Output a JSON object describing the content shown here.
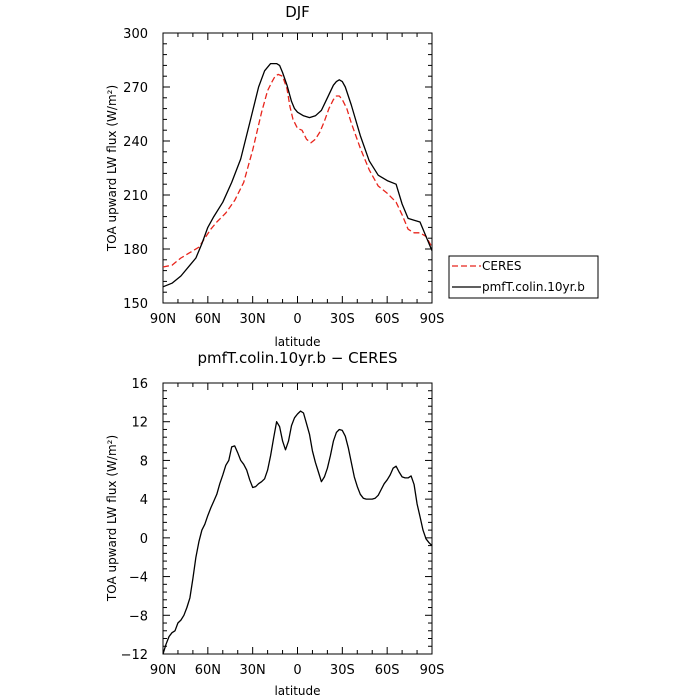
{
  "chart_data": [
    {
      "type": "line",
      "title": "DJF",
      "xlabel": "latitude",
      "ylabel": "TOA upward LW flux (W/m²)",
      "xlim": [
        -90,
        90
      ],
      "ylim": [
        150,
        300
      ],
      "x_ticks": [
        {
          "value": -90,
          "label": "90N"
        },
        {
          "value": -60,
          "label": "60N"
        },
        {
          "value": -30,
          "label": "30N"
        },
        {
          "value": 0,
          "label": "0"
        },
        {
          "value": 30,
          "label": "30S"
        },
        {
          "value": 60,
          "label": "60S"
        },
        {
          "value": 90,
          "label": "90S"
        }
      ],
      "y_ticks": [
        150,
        180,
        210,
        240,
        270,
        300
      ],
      "legend": "outside-right",
      "series": [
        {
          "name": "CERES",
          "color": "#e8251c",
          "dash": "dashed",
          "x": [
            -90,
            -84,
            -78,
            -72,
            -66,
            -62,
            -58,
            -54,
            -48,
            -42,
            -36,
            -30,
            -24,
            -20,
            -17,
            -15,
            -13,
            -10,
            -7,
            -5,
            -3,
            0,
            3,
            6,
            9,
            12,
            15,
            18,
            21,
            24,
            26,
            28,
            30,
            33,
            36,
            42,
            48,
            54,
            60,
            66,
            70,
            74,
            78,
            82,
            86,
            90
          ],
          "values": [
            170,
            171,
            175,
            178,
            181,
            186,
            191,
            195,
            200,
            207,
            217,
            235,
            256,
            268,
            273,
            276,
            277,
            276,
            269,
            259,
            252,
            247,
            246,
            241,
            239,
            241,
            245,
            251,
            258,
            263,
            265,
            265,
            263,
            258,
            250,
            236,
            224,
            215,
            211,
            206,
            199,
            191,
            189,
            189,
            187,
            181
          ]
        },
        {
          "name": "pmfT.colin.10yr.b",
          "color": "#000000",
          "dash": "solid",
          "x": [
            -90,
            -84,
            -78,
            -72,
            -68,
            -64,
            -60,
            -56,
            -50,
            -44,
            -38,
            -32,
            -26,
            -22,
            -18,
            -16,
            -14,
            -12,
            -10,
            -7,
            -4,
            -2,
            0,
            4,
            8,
            12,
            16,
            20,
            24,
            26,
            28,
            30,
            32,
            36,
            42,
            48,
            54,
            60,
            66,
            70,
            74,
            78,
            82,
            86,
            90
          ],
          "values": [
            159,
            161,
            165,
            171,
            175,
            183,
            192,
            198,
            206,
            217,
            230,
            250,
            270,
            279,
            283,
            283,
            283,
            282,
            278,
            271,
            262,
            258,
            256,
            254,
            253,
            254,
            257,
            264,
            271,
            273,
            274,
            273,
            270,
            260,
            243,
            229,
            221,
            218,
            216,
            205,
            197,
            196,
            195,
            187,
            179
          ]
        }
      ]
    },
    {
      "type": "line",
      "title": "pmfT.colin.10yr.b − CERES",
      "xlabel": "latitude",
      "ylabel": "TOA upward LW flux (W/m²)",
      "xlim": [
        -90,
        90
      ],
      "ylim": [
        -12,
        16
      ],
      "x_ticks": [
        {
          "value": -90,
          "label": "90N"
        },
        {
          "value": -60,
          "label": "60N"
        },
        {
          "value": -30,
          "label": "30N"
        },
        {
          "value": 0,
          "label": "0"
        },
        {
          "value": 30,
          "label": "30S"
        },
        {
          "value": 60,
          "label": "60S"
        },
        {
          "value": 90,
          "label": "90S"
        }
      ],
      "y_ticks": [
        -12,
        -8,
        -4,
        0,
        4,
        8,
        12,
        16
      ],
      "series": [
        {
          "color": "#000000",
          "dash": "solid",
          "x": [
            -90,
            -88,
            -86,
            -84,
            -82,
            -80,
            -78,
            -76,
            -74,
            -72,
            -70,
            -68,
            -66,
            -64,
            -62,
            -60,
            -58,
            -56,
            -54,
            -52,
            -50,
            -48,
            -46,
            -44,
            -42,
            -40,
            -38,
            -36,
            -34,
            -32,
            -30,
            -28,
            -26,
            -24,
            -22,
            -20,
            -18,
            -16,
            -14,
            -12,
            -10,
            -8,
            -6,
            -4,
            -2,
            0,
            2,
            4,
            6,
            8,
            10,
            12,
            14,
            16,
            18,
            20,
            22,
            24,
            26,
            28,
            30,
            32,
            34,
            36,
            38,
            40,
            42,
            44,
            46,
            48,
            50,
            52,
            54,
            56,
            58,
            60,
            62,
            64,
            66,
            68,
            70,
            72,
            74,
            76,
            78,
            80,
            82,
            84,
            86,
            88,
            90
          ],
          "values": [
            -12,
            -11,
            -10.2,
            -9.8,
            -9.6,
            -8.8,
            -8.5,
            -8,
            -7.2,
            -6.2,
            -4.2,
            -2,
            -0.4,
            0.8,
            1.4,
            2.3,
            3.1,
            3.8,
            4.5,
            5.6,
            6.5,
            7.5,
            8,
            9.4,
            9.5,
            8.8,
            8,
            7.6,
            7,
            6,
            5.2,
            5.3,
            5.6,
            5.8,
            6.1,
            7,
            8.5,
            10.3,
            12,
            11.5,
            10,
            9.1,
            10,
            11.6,
            12.4,
            12.8,
            13.1,
            12.9,
            11.8,
            10.7,
            9,
            7.8,
            6.8,
            5.8,
            6.3,
            7.2,
            8.5,
            10,
            10.9,
            11.2,
            11.1,
            10.5,
            9.3,
            7.8,
            6.3,
            5.3,
            4.5,
            4.1,
            4,
            4,
            4,
            4.1,
            4.4,
            5,
            5.6,
            6,
            6.5,
            7.2,
            7.4,
            6.8,
            6.3,
            6.2,
            6.2,
            6.4,
            5.5,
            3.5,
            2.2,
            0.8,
            -0.1,
            -0.5,
            -0.8
          ]
        }
      ]
    }
  ]
}
